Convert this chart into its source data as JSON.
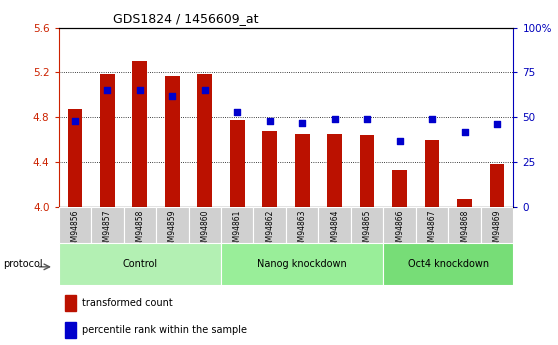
{
  "title": "GDS1824 / 1456609_at",
  "samples": [
    "GSM94856",
    "GSM94857",
    "GSM94858",
    "GSM94859",
    "GSM94860",
    "GSM94861",
    "GSM94862",
    "GSM94863",
    "GSM94864",
    "GSM94865",
    "GSM94866",
    "GSM94867",
    "GSM94868",
    "GSM94869"
  ],
  "bar_values": [
    4.87,
    5.19,
    5.3,
    5.17,
    5.19,
    4.78,
    4.68,
    4.65,
    4.65,
    4.64,
    4.33,
    4.6,
    4.07,
    4.38
  ],
  "dot_values": [
    48,
    65,
    65,
    62,
    65,
    53,
    48,
    47,
    49,
    49,
    37,
    49,
    42,
    46
  ],
  "ylim_left": [
    4.0,
    5.6
  ],
  "ylim_right": [
    0,
    100
  ],
  "yticks_left": [
    4.0,
    4.4,
    4.8,
    5.2,
    5.6
  ],
  "yticks_right": [
    0,
    25,
    50,
    75,
    100
  ],
  "ytick_labels_right": [
    "0",
    "25",
    "50",
    "75",
    "100%"
  ],
  "grid_lines": [
    4.4,
    4.8,
    5.2
  ],
  "groups": [
    {
      "label": "Control",
      "start": 0,
      "end": 5,
      "color": "#b3f0b3"
    },
    {
      "label": "Nanog knockdown",
      "start": 5,
      "end": 10,
      "color": "#99ee99"
    },
    {
      "label": "Oct4 knockdown",
      "start": 10,
      "end": 14,
      "color": "#77dd77"
    }
  ],
  "bar_color": "#bb1100",
  "dot_color": "#0000cc",
  "bar_base": 4.0,
  "left_tick_color": "#cc2200",
  "right_tick_color": "#0000bb",
  "legend_bar_label": "transformed count",
  "legend_dot_label": "percentile rank within the sample",
  "protocol_label": "protocol",
  "xtick_bg": "#d0d0d0",
  "plot_bg": "#ffffff"
}
